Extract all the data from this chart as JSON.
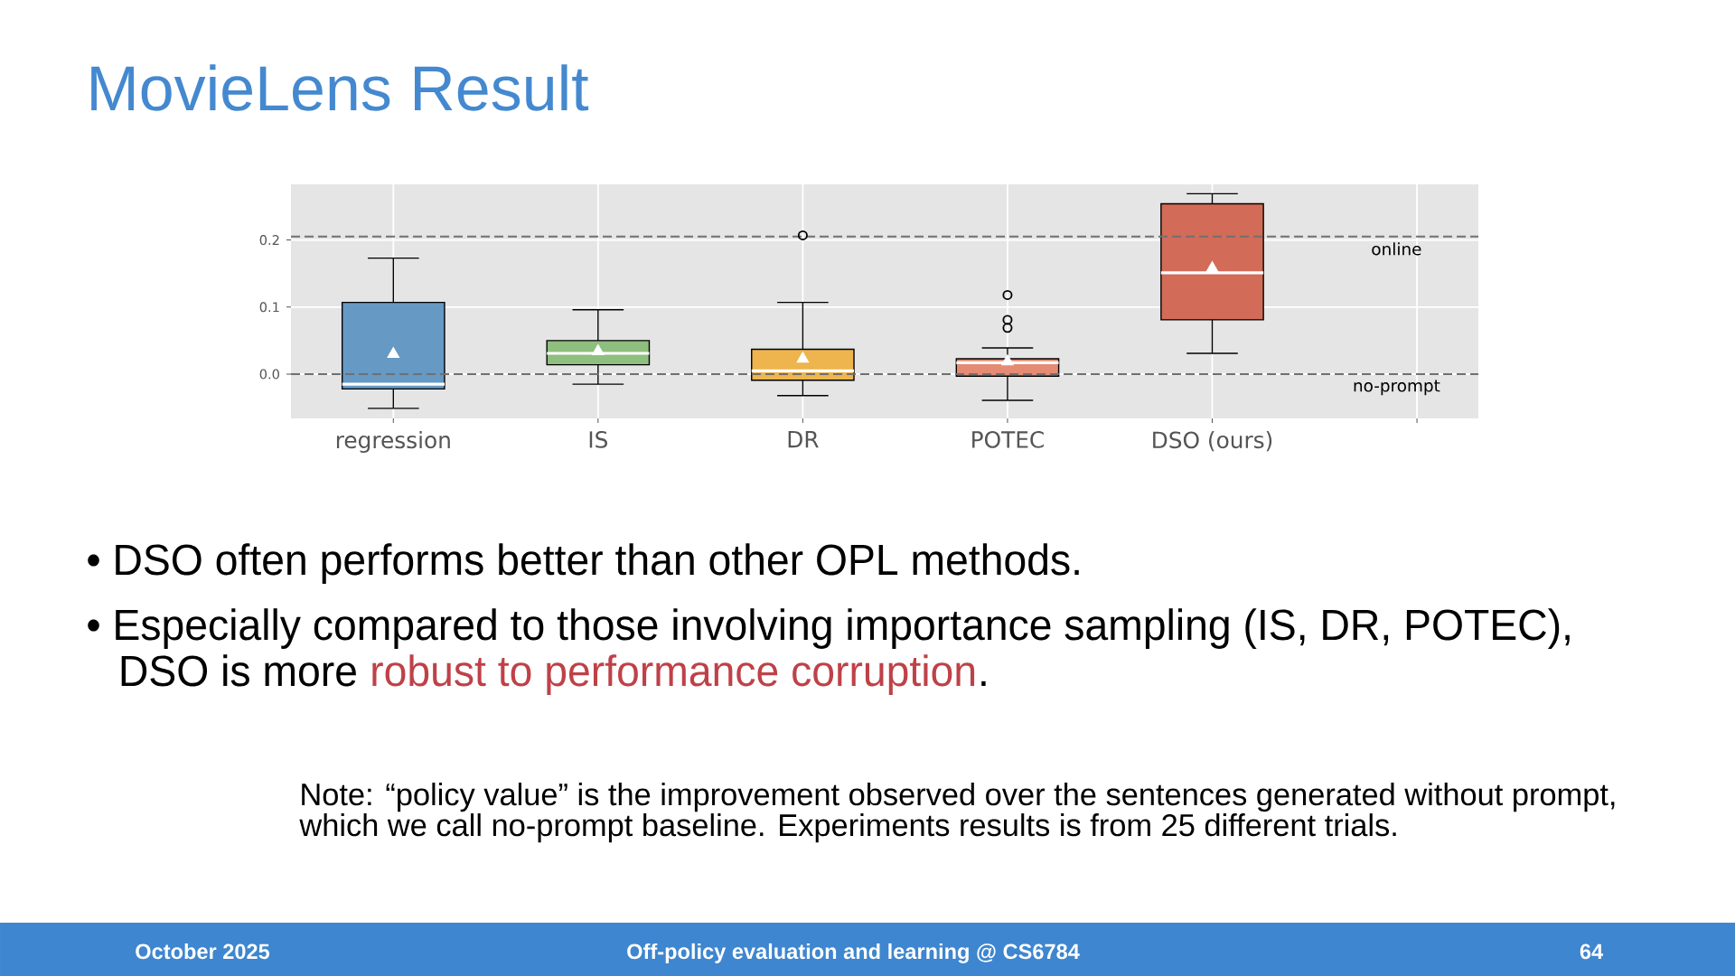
{
  "chart_data": {
    "type": "box",
    "title": "MovieLens Result",
    "categories": [
      "regression",
      "IS",
      "DR",
      "POTEC",
      "DSO (ours)",
      null
    ],
    "boxes": [
      {
        "low": -0.051,
        "q1": -0.022,
        "median": -0.015,
        "q3": 0.107,
        "high": 0.173,
        "mean": 0.03
      },
      {
        "low": -0.015,
        "q1": 0.014,
        "median": 0.031,
        "q3": 0.05,
        "high": 0.096,
        "mean": 0.034
      },
      {
        "low": -0.032,
        "q1": -0.009,
        "median": 0.005,
        "q3": 0.037,
        "high": 0.107,
        "mean": 0.023,
        "outliers": [
          0.207
        ]
      },
      {
        "low": -0.039,
        "q1": -0.003,
        "median": 0.017,
        "q3": 0.023,
        "high": 0.039,
        "mean": 0.019,
        "outliers": [
          0.069,
          0.081,
          0.118
        ]
      },
      {
        "low": 0.031,
        "q1": 0.081,
        "median": 0.151,
        "q3": 0.254,
        "high": 0.269,
        "mean": 0.158
      },
      null
    ],
    "colors": [
      "#6699c4",
      "#8fbf7e",
      "#eeb44d",
      "#e58b74",
      "#d36b59",
      null
    ],
    "ylim": [
      -0.066,
      0.283
    ],
    "yticks": [
      {
        "value": 0,
        "label": "0.0"
      },
      0.1,
      0.2
    ],
    "grid": true,
    "ref_lines": [
      {
        "axis": "y",
        "value": 0.205,
        "label": "online",
        "color": "#707070",
        "line_style": "dashed"
      },
      {
        "axis": "y",
        "value": 0,
        "label": "no-prompt",
        "color": "#707070",
        "line_style": "dashed"
      }
    ],
    "annotations": [
      "•  DSO often performs better than other OPL methods.",
      "•  Especially compared to those involving importance sampling (IS, DR, POTEC),",
      "DSO is more",
      "robust to performance corruption",
      ".",
      "Note: “policy value” is the improvement observed over the sentences generated without prompt,",
      "which we call no-prompt baseline. Experiments results is from 25 different trials.",
      "October 2025",
      "Off-policy evaluation and learning @ CS6784",
      "64"
    ]
  }
}
